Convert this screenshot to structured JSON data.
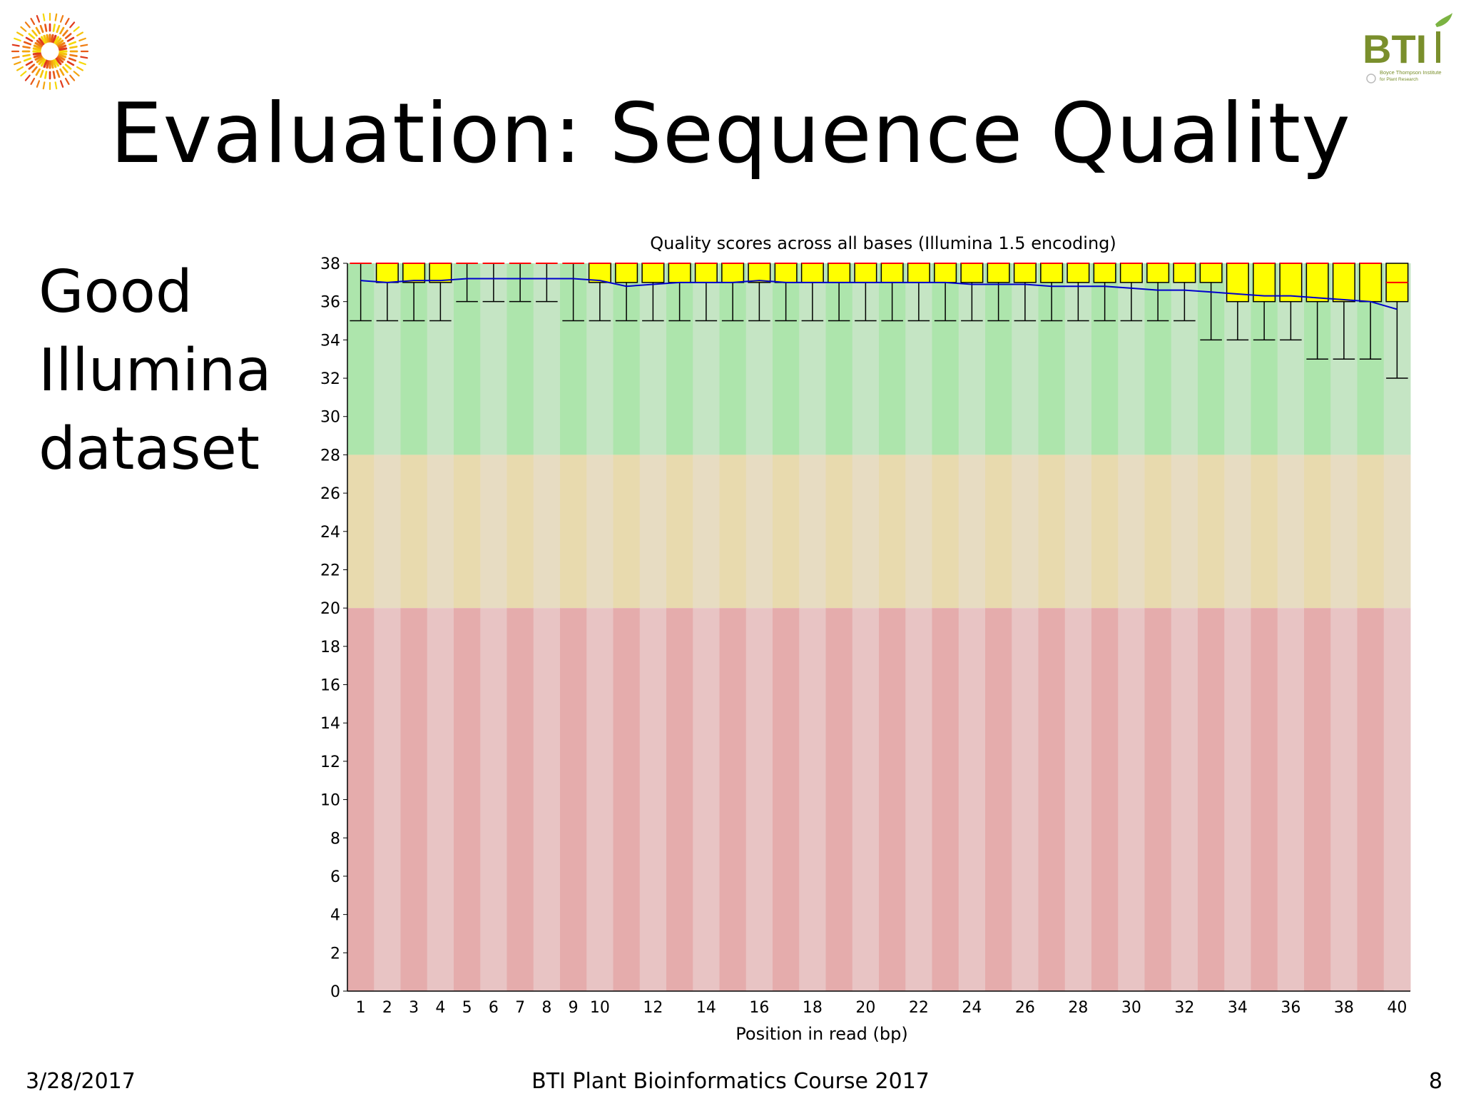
{
  "slide": {
    "title": "Evaluation: Sequence Quality",
    "side_lines": [
      "Good",
      "Illumina",
      "dataset"
    ],
    "footer_date": "3/28/2017",
    "footer_course": "BTI Plant Bioinformatics Course 2017",
    "page_number": "8",
    "logo_right": {
      "letters": "BTI",
      "tagline_line1": "Boyce Thompson Institute",
      "tagline_line2": "for Plant Research"
    }
  },
  "chart_data": {
    "type": "box",
    "title": "Quality scores across all bases (Illumina 1.5 encoding)",
    "xlabel": "Position in read (bp)",
    "ylabel": "",
    "ylim": [
      0,
      38
    ],
    "y_ticks": [
      0,
      2,
      4,
      6,
      8,
      10,
      12,
      14,
      16,
      18,
      20,
      22,
      24,
      26,
      28,
      30,
      32,
      34,
      36,
      38
    ],
    "x_tick_labels": [
      "1",
      "2",
      "3",
      "4",
      "5",
      "6",
      "7",
      "8",
      "9",
      "10",
      "12",
      "14",
      "16",
      "18",
      "20",
      "22",
      "24",
      "26",
      "28",
      "30",
      "32",
      "34",
      "36",
      "38",
      "40"
    ],
    "positions": [
      1,
      2,
      3,
      4,
      5,
      6,
      7,
      8,
      9,
      10,
      11,
      12,
      13,
      14,
      15,
      16,
      17,
      18,
      19,
      20,
      21,
      22,
      23,
      24,
      25,
      26,
      27,
      28,
      29,
      30,
      31,
      32,
      33,
      34,
      35,
      36,
      37,
      38,
      39,
      40
    ],
    "bands": [
      {
        "range": [
          28,
          38
        ],
        "quality": "good",
        "color_light": "#c5e5c4",
        "color_dark": "#ade5ac"
      },
      {
        "range": [
          20,
          28
        ],
        "quality": "reasonable",
        "color_light": "#e7dcc2",
        "color_dark": "#e8daae"
      },
      {
        "range": [
          0,
          20
        ],
        "quality": "poor",
        "color_light": "#e8c4c4",
        "color_dark": "#e5acac"
      }
    ],
    "box_color": "#ffff00",
    "median_color": "#ff0000",
    "mean_color": "#0000cc",
    "boxes": [
      {
        "pos": 1,
        "lower_whisker": 35,
        "q1": 38,
        "median": 38,
        "q3": 38,
        "upper_whisker": 38,
        "mean": 37.1
      },
      {
        "pos": 2,
        "lower_whisker": 35,
        "q1": 37,
        "median": 38,
        "q3": 38,
        "upper_whisker": 38,
        "mean": 37.0
      },
      {
        "pos": 3,
        "lower_whisker": 35,
        "q1": 37,
        "median": 38,
        "q3": 38,
        "upper_whisker": 38,
        "mean": 37.1
      },
      {
        "pos": 4,
        "lower_whisker": 35,
        "q1": 37,
        "median": 38,
        "q3": 38,
        "upper_whisker": 38,
        "mean": 37.1
      },
      {
        "pos": 5,
        "lower_whisker": 36,
        "q1": 38,
        "median": 38,
        "q3": 38,
        "upper_whisker": 38,
        "mean": 37.2
      },
      {
        "pos": 6,
        "lower_whisker": 36,
        "q1": 38,
        "median": 38,
        "q3": 38,
        "upper_whisker": 38,
        "mean": 37.2
      },
      {
        "pos": 7,
        "lower_whisker": 36,
        "q1": 38,
        "median": 38,
        "q3": 38,
        "upper_whisker": 38,
        "mean": 37.2
      },
      {
        "pos": 8,
        "lower_whisker": 36,
        "q1": 38,
        "median": 38,
        "q3": 38,
        "upper_whisker": 38,
        "mean": 37.2
      },
      {
        "pos": 9,
        "lower_whisker": 35,
        "q1": 38,
        "median": 38,
        "q3": 38,
        "upper_whisker": 38,
        "mean": 37.2
      },
      {
        "pos": 10,
        "lower_whisker": 35,
        "q1": 37,
        "median": 38,
        "q3": 38,
        "upper_whisker": 38,
        "mean": 37.1
      },
      {
        "pos": 11,
        "lower_whisker": 35,
        "q1": 37,
        "median": 38,
        "q3": 38,
        "upper_whisker": 38,
        "mean": 36.8
      },
      {
        "pos": 12,
        "lower_whisker": 35,
        "q1": 37,
        "median": 38,
        "q3": 38,
        "upper_whisker": 38,
        "mean": 36.9
      },
      {
        "pos": 13,
        "lower_whisker": 35,
        "q1": 37,
        "median": 38,
        "q3": 38,
        "upper_whisker": 38,
        "mean": 37.0
      },
      {
        "pos": 14,
        "lower_whisker": 35,
        "q1": 37,
        "median": 38,
        "q3": 38,
        "upper_whisker": 38,
        "mean": 37.0
      },
      {
        "pos": 15,
        "lower_whisker": 35,
        "q1": 37,
        "median": 38,
        "q3": 38,
        "upper_whisker": 38,
        "mean": 37.0
      },
      {
        "pos": 16,
        "lower_whisker": 35,
        "q1": 37,
        "median": 38,
        "q3": 38,
        "upper_whisker": 38,
        "mean": 37.1
      },
      {
        "pos": 17,
        "lower_whisker": 35,
        "q1": 37,
        "median": 38,
        "q3": 38,
        "upper_whisker": 38,
        "mean": 37.0
      },
      {
        "pos": 18,
        "lower_whisker": 35,
        "q1": 37,
        "median": 38,
        "q3": 38,
        "upper_whisker": 38,
        "mean": 37.0
      },
      {
        "pos": 19,
        "lower_whisker": 35,
        "q1": 37,
        "median": 38,
        "q3": 38,
        "upper_whisker": 38,
        "mean": 37.0
      },
      {
        "pos": 20,
        "lower_whisker": 35,
        "q1": 37,
        "median": 38,
        "q3": 38,
        "upper_whisker": 38,
        "mean": 37.0
      },
      {
        "pos": 21,
        "lower_whisker": 35,
        "q1": 37,
        "median": 38,
        "q3": 38,
        "upper_whisker": 38,
        "mean": 37.0
      },
      {
        "pos": 22,
        "lower_whisker": 35,
        "q1": 37,
        "median": 38,
        "q3": 38,
        "upper_whisker": 38,
        "mean": 37.0
      },
      {
        "pos": 23,
        "lower_whisker": 35,
        "q1": 37,
        "median": 38,
        "q3": 38,
        "upper_whisker": 38,
        "mean": 37.0
      },
      {
        "pos": 24,
        "lower_whisker": 35,
        "q1": 37,
        "median": 38,
        "q3": 38,
        "upper_whisker": 38,
        "mean": 36.9
      },
      {
        "pos": 25,
        "lower_whisker": 35,
        "q1": 37,
        "median": 38,
        "q3": 38,
        "upper_whisker": 38,
        "mean": 36.9
      },
      {
        "pos": 26,
        "lower_whisker": 35,
        "q1": 37,
        "median": 38,
        "q3": 38,
        "upper_whisker": 38,
        "mean": 36.9
      },
      {
        "pos": 27,
        "lower_whisker": 35,
        "q1": 37,
        "median": 38,
        "q3": 38,
        "upper_whisker": 38,
        "mean": 36.8
      },
      {
        "pos": 28,
        "lower_whisker": 35,
        "q1": 37,
        "median": 38,
        "q3": 38,
        "upper_whisker": 38,
        "mean": 36.8
      },
      {
        "pos": 29,
        "lower_whisker": 35,
        "q1": 37,
        "median": 38,
        "q3": 38,
        "upper_whisker": 38,
        "mean": 36.8
      },
      {
        "pos": 30,
        "lower_whisker": 35,
        "q1": 37,
        "median": 38,
        "q3": 38,
        "upper_whisker": 38,
        "mean": 36.7
      },
      {
        "pos": 31,
        "lower_whisker": 35,
        "q1": 37,
        "median": 38,
        "q3": 38,
        "upper_whisker": 38,
        "mean": 36.6
      },
      {
        "pos": 32,
        "lower_whisker": 35,
        "q1": 37,
        "median": 38,
        "q3": 38,
        "upper_whisker": 38,
        "mean": 36.6
      },
      {
        "pos": 33,
        "lower_whisker": 34,
        "q1": 37,
        "median": 38,
        "q3": 38,
        "upper_whisker": 38,
        "mean": 36.5
      },
      {
        "pos": 34,
        "lower_whisker": 34,
        "q1": 36,
        "median": 38,
        "q3": 38,
        "upper_whisker": 38,
        "mean": 36.4
      },
      {
        "pos": 35,
        "lower_whisker": 34,
        "q1": 36,
        "median": 38,
        "q3": 38,
        "upper_whisker": 38,
        "mean": 36.3
      },
      {
        "pos": 36,
        "lower_whisker": 34,
        "q1": 36,
        "median": 38,
        "q3": 38,
        "upper_whisker": 38,
        "mean": 36.3
      },
      {
        "pos": 37,
        "lower_whisker": 33,
        "q1": 36,
        "median": 38,
        "q3": 38,
        "upper_whisker": 38,
        "mean": 36.2
      },
      {
        "pos": 38,
        "lower_whisker": 33,
        "q1": 36,
        "median": 38,
        "q3": 38,
        "upper_whisker": 38,
        "mean": 36.1
      },
      {
        "pos": 39,
        "lower_whisker": 33,
        "q1": 36,
        "median": 38,
        "q3": 38,
        "upper_whisker": 38,
        "mean": 36.0
      },
      {
        "pos": 40,
        "lower_whisker": 32,
        "q1": 36,
        "median": 37,
        "q3": 38,
        "upper_whisker": 38,
        "mean": 35.6
      }
    ]
  }
}
